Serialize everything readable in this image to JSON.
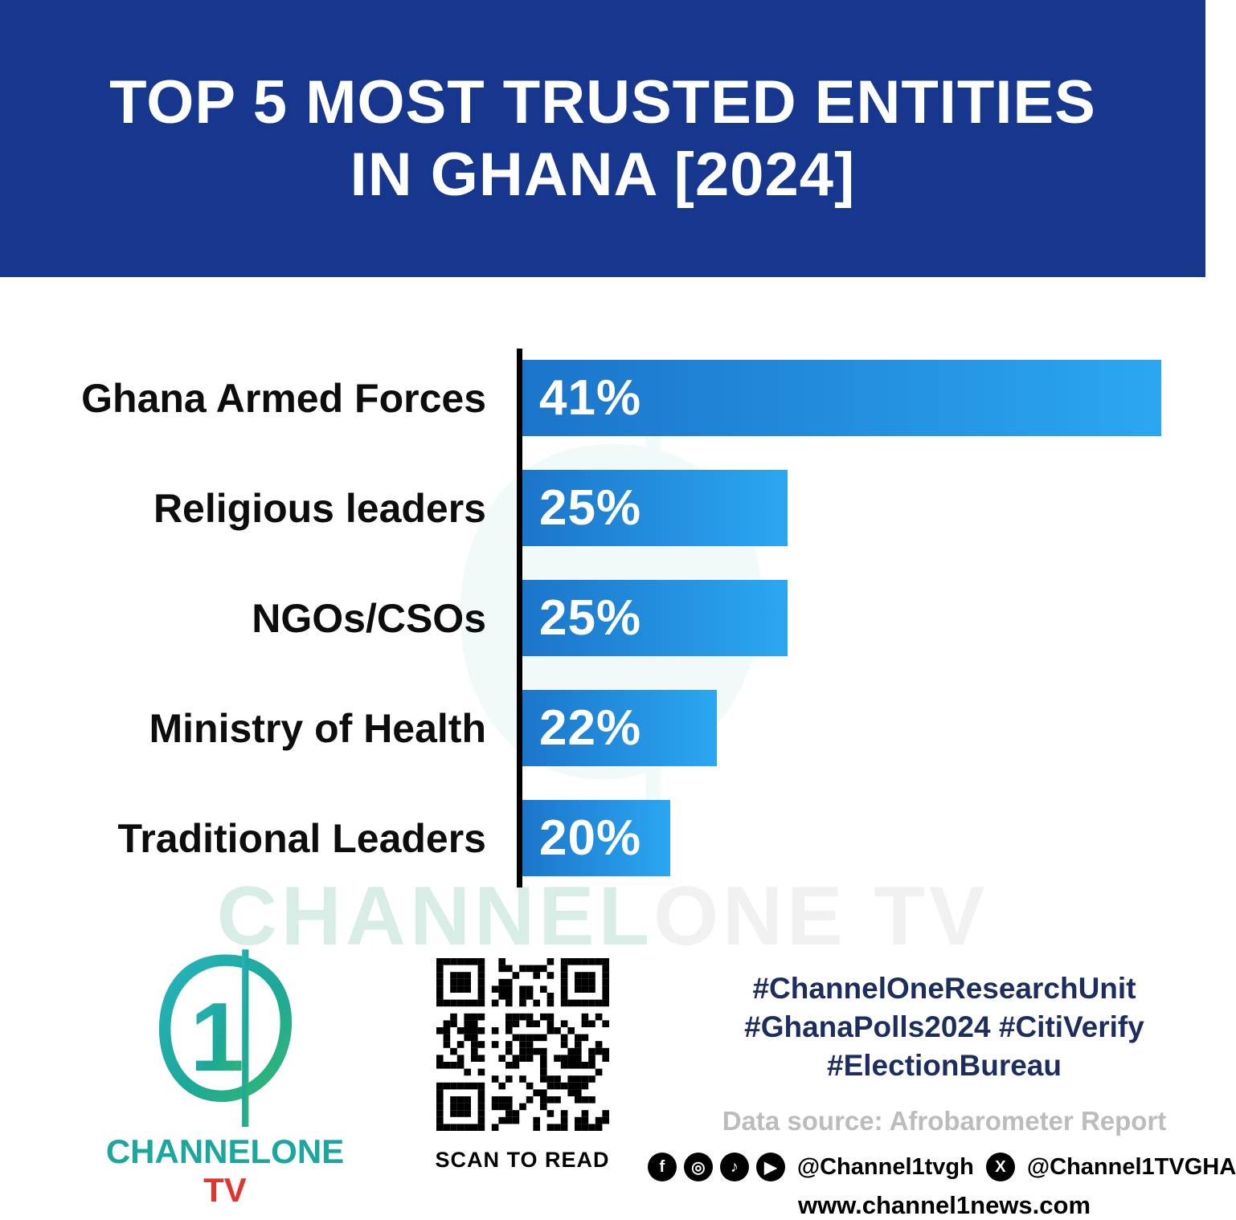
{
  "header": {
    "title_line1": "TOP 5 MOST TRUSTED ENTITIES",
    "title_line2": "IN GHANA [2024]"
  },
  "chart_data": {
    "type": "bar",
    "orientation": "horizontal",
    "title": "Top 5 Most Trusted Entities in Ghana [2024]",
    "categories": [
      "Ghana Armed Forces",
      "Religious leaders",
      "NGOs/CSOs",
      "Ministry of Health",
      "Traditional Leaders"
    ],
    "values": [
      41,
      25,
      25,
      22,
      20
    ],
    "value_labels": [
      "41%",
      "25%",
      "25%",
      "22%",
      "20%"
    ],
    "xlabel": "",
    "ylabel": "",
    "xlim": [
      0,
      41
    ],
    "grid": false,
    "legend": false,
    "bar_display_scale": {
      "offset": 13.5,
      "max": 41
    },
    "bar_color_start": "#1b74c9",
    "bar_color_end": "#2ba7f1"
  },
  "watermark": {
    "part1": "CHANNEL",
    "part2": "ONE TV"
  },
  "footer": {
    "logo": {
      "digit": "1",
      "brand_main": "CHANNELONE ",
      "brand_tv": "TV"
    },
    "qr_caption": "SCAN TO READ",
    "hashtags": [
      "#ChannelOneResearchUnit",
      "#GhanaPolls2024 #CitiVerify",
      "#ElectionBureau"
    ],
    "data_source": "Data source: Afrobarometer Report",
    "social": {
      "icons": [
        {
          "name": "facebook",
          "glyph": "f"
        },
        {
          "name": "instagram",
          "glyph": "◎"
        },
        {
          "name": "tiktok",
          "glyph": "♪"
        },
        {
          "name": "youtube",
          "glyph": "▶"
        }
      ],
      "handle1": "@Channel1tvgh",
      "x_glyph": "X",
      "handle2": "@Channel1TVGHA"
    },
    "website": "www.channel1news.com"
  },
  "colors": {
    "header_bg": "#17378f",
    "hashtag_color": "#1c2d5e",
    "brand_teal": "#1ba79d",
    "brand_red": "#e3342b",
    "bar_gradient_start": "#1b74c9",
    "bar_gradient_end": "#2ba7f1"
  }
}
